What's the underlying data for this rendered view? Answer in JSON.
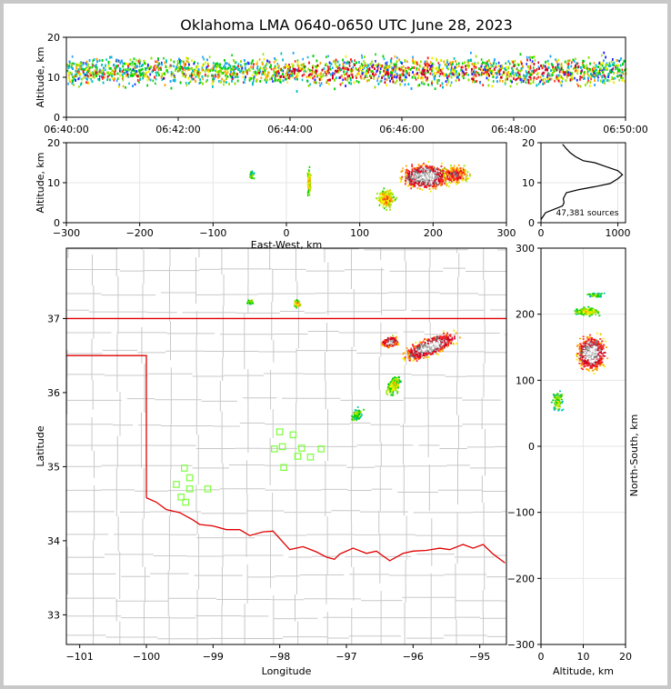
{
  "chart_data": {
    "type": "scatter",
    "title": "Oklahoma LMA 0640-0650 UTC June 28, 2023",
    "source_count_label": "47,381 sources",
    "time_height": {
      "ylabel": "Altitude, km",
      "ylim": [
        0,
        20
      ],
      "yticks": [
        "0",
        "10",
        "20"
      ],
      "xticks": [
        "06:40:00",
        "06:42:00",
        "06:44:00",
        "06:46:00",
        "06:48:00",
        "06:50:00"
      ],
      "xlim_min": [
        0,
        10
      ]
    },
    "ew_altitude": {
      "xlabel": "East-West, km",
      "ylabel": "Altitude, km",
      "xlim": [
        -300,
        300
      ],
      "ylim": [
        0,
        20
      ],
      "xticks": [
        "−300",
        "−200",
        "−100",
        "0",
        "100",
        "200",
        "300"
      ],
      "yticks": [
        "0",
        "10",
        "20"
      ]
    },
    "histogram": {
      "xlim": [
        0,
        1100
      ],
      "ylim": [
        0,
        20
      ],
      "xticks": [
        "0",
        "1000"
      ],
      "yticks": [
        "0",
        "10",
        "20"
      ],
      "profile": [
        [
          0,
          0.8
        ],
        [
          60,
          2.5
        ],
        [
          150,
          3.2
        ],
        [
          280,
          4.2
        ],
        [
          300,
          5
        ],
        [
          290,
          6
        ],
        [
          330,
          7.5
        ],
        [
          500,
          8.3
        ],
        [
          700,
          9
        ],
        [
          900,
          9.8
        ],
        [
          1000,
          11
        ],
        [
          1060,
          12
        ],
        [
          1000,
          13
        ],
        [
          850,
          14
        ],
        [
          700,
          15
        ],
        [
          550,
          15.5
        ],
        [
          450,
          16.5
        ],
        [
          380,
          17.5
        ],
        [
          330,
          18.5
        ],
        [
          300,
          19.2
        ],
        [
          280,
          19.6
        ]
      ]
    },
    "plan": {
      "xlabel": "Longitude",
      "ylabel": "Latitude",
      "xlim": [
        -101.2,
        -94.6
      ],
      "ylim": [
        32.6,
        37.95
      ],
      "xticks": [
        "−101",
        "−100",
        "−99",
        "−98",
        "−97",
        "−96",
        "−95"
      ],
      "yticks": [
        "33",
        "34",
        "35",
        "36",
        "37"
      ]
    },
    "ns_altitude": {
      "xlabel": "Altitude, km",
      "ylabel": "North-South, km",
      "xlim": [
        0,
        20
      ],
      "ylim": [
        -300,
        300
      ],
      "xticks": [
        "0",
        "10",
        "20"
      ],
      "yticks": [
        "−300",
        "−200",
        "−100",
        "0",
        "100",
        "200",
        "300"
      ]
    },
    "stations": [
      [
        -98,
        35.47
      ],
      [
        -97.8,
        35.43
      ],
      [
        -98.08,
        35.24
      ],
      [
        -97.96,
        35.27
      ],
      [
        -97.67,
        35.25
      ],
      [
        -97.38,
        35.24
      ],
      [
        -97.73,
        35.14
      ],
      [
        -97.54,
        35.13
      ],
      [
        -97.94,
        34.99
      ],
      [
        -99.43,
        34.98
      ],
      [
        -99.35,
        34.85
      ],
      [
        -99.55,
        34.76
      ],
      [
        -99.35,
        34.7
      ],
      [
        -99.08,
        34.7
      ],
      [
        -99.48,
        34.59
      ],
      [
        -99.41,
        34.52
      ]
    ],
    "boundary_color": "#e00000",
    "station_color": "#7cff3a",
    "county_color": "#c8c8c8"
  }
}
